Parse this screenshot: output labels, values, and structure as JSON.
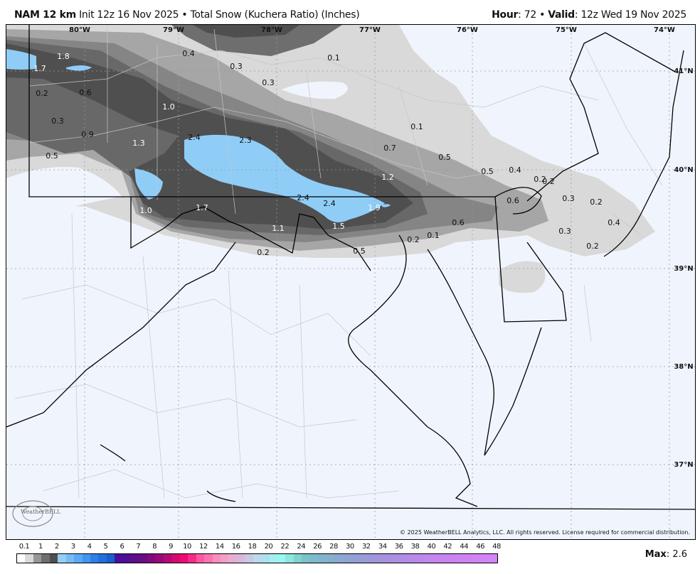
{
  "header": {
    "model": "NAM 12 km",
    "init": "Init 12z 16 Nov 2025",
    "separator": "•",
    "product": "Total Snow (Kuchera Ratio) (Inches)",
    "hour_label": "Hour",
    "hour_value": ": 72",
    "valid_label": "Valid",
    "valid_value": ": 12z Wed 19 Nov 2025"
  },
  "map": {
    "longitude_ticks": [
      "80°W",
      "79°W",
      "78°W",
      "77°W",
      "76°W",
      "75°W",
      "74°W"
    ],
    "latitude_ticks": [
      "41°N",
      "40°N",
      "39°N",
      "38°N",
      "37°N"
    ],
    "snow_labels": [
      "1.8",
      "1.7",
      "0.2",
      "0.6",
      "0.3",
      "0.9",
      "0.5",
      "0.4",
      "0.3",
      "0.3",
      "0.1",
      "1.0",
      "1.3",
      "2.4",
      "2.3",
      "1.0",
      "1.7",
      "1.1",
      "0.2",
      "2.4",
      "2.4",
      "1.5",
      "1.9",
      "0.5",
      "1.2",
      "0.7",
      "0.5",
      "0.1",
      "0.5",
      "0.4",
      "0.2",
      "0.2",
      "0.6",
      "0.3",
      "0.2",
      "0.6",
      "0.2",
      "0.1",
      "0.4",
      "0.3",
      "0.2"
    ],
    "shading_colors": {
      "light": "#d9d9d9",
      "mid": "#a6a6a6",
      "dark": "#858585",
      "darker": "#686868",
      "darkest": "#4f4f4f",
      "blue": "#8fcdf7",
      "background": "#f0f5fd"
    },
    "watermark": "WeatherBELL",
    "copyright": "© 2025 WeatherBELL Analytics, LLC. All rights reserved. License required for commercial distribution."
  },
  "colorbar": {
    "labels": [
      "0.1",
      "1",
      "2",
      "3",
      "4",
      "5",
      "6",
      "7",
      "8",
      "9",
      "10",
      "12",
      "14",
      "16",
      "18",
      "20",
      "22",
      "24",
      "26",
      "28",
      "30",
      "32",
      "34",
      "36",
      "38",
      "40",
      "42",
      "44",
      "46",
      "48"
    ],
    "colors": [
      "#ffffff",
      "#d9d9d9",
      "#969696",
      "#6e6e6e",
      "#4f4f4f",
      "#93cdf8",
      "#78baf6",
      "#5ba8f3",
      "#4095ef",
      "#2c80e6",
      "#206fdc",
      "#1a5fcb",
      "#4a0d9c",
      "#520e93",
      "#5c0e8b",
      "#680d82",
      "#800b7c",
      "#990a79",
      "#b30a74",
      "#d20a70",
      "#ef0a76",
      "#f72a88",
      "#fb5aa2",
      "#fc73b1",
      "#f98dbd",
      "#f19fc7",
      "#e6aed1",
      "#d6b9da",
      "#c8c9e3",
      "#bbdaeb",
      "#addff0",
      "#a5edf2",
      "#99f6f3",
      "#8ee6dc",
      "#80d3d0",
      "#7bc2c9",
      "#7dbacb",
      "#82b4cd",
      "#86aecf",
      "#8aa8d2",
      "#8ea4d4",
      "#93a0d6",
      "#989cd8",
      "#9d98da",
      "#a295dd",
      "#a792df",
      "#ac90e2",
      "#b18ee5",
      "#b68be8",
      "#bb89ea",
      "#c087ed",
      "#c585ef",
      "#c983f1",
      "#cc82f3",
      "#ce82f4",
      "#d082f5",
      "#d282f6",
      "#d383f7",
      "#d484f7"
    ],
    "max_label": "Max",
    "max_value": ": 2.6"
  }
}
